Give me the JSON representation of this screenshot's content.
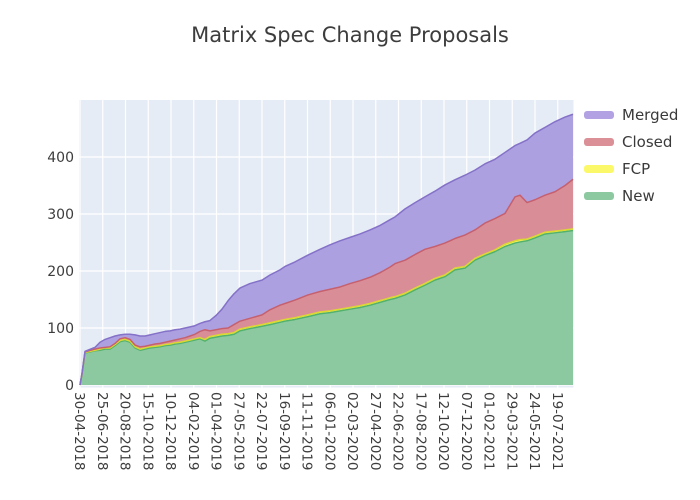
{
  "chart_data": {
    "type": "area",
    "stacked": true,
    "title": "Matrix Spec Change Proposals",
    "x_unit": "tick index (one tick = 56 days)",
    "x_axis": {
      "tick_labels": [
        "30-04-2018",
        "25-06-2018",
        "20-08-2018",
        "15-10-2018",
        "10-12-2018",
        "04-02-2019",
        "01-04-2019",
        "27-05-2019",
        "22-07-2019",
        "16-09-2019",
        "11-11-2019",
        "06-01-2020",
        "02-03-2020",
        "27-04-2020",
        "22-06-2020",
        "17-08-2020",
        "12-10-2020",
        "07-12-2020",
        "01-02-2021",
        "29-03-2021",
        "24-05-2021",
        "19-07-2021"
      ],
      "label_rotation_deg": 90
    },
    "y_axis": {
      "ticks": [
        0,
        100,
        200,
        300,
        400
      ],
      "range": [
        0,
        500
      ]
    },
    "grid": true,
    "x": [
      0,
      0.09,
      0.22,
      0.66,
      0.88,
      1.1,
      1.32,
      1.54,
      1.76,
      1.98,
      2.2,
      2.42,
      2.64,
      2.86,
      3.08,
      3.3,
      3.52,
      3.74,
      3.96,
      4.18,
      4.4,
      4.62,
      4.84,
      5.05,
      5.27,
      5.49,
      5.71,
      5.98,
      6.24,
      6.51,
      6.77,
      7.03,
      7.47,
      8.0,
      8.35,
      8.79,
      9.01,
      9.45,
      10.02,
      10.55,
      10.99,
      11.43,
      11.87,
      12.31,
      12.75,
      13.19,
      13.63,
      13.85,
      14.29,
      14.73,
      15.16,
      15.6,
      16.04,
      16.48,
      16.92,
      17.36,
      17.8,
      18.24,
      18.68,
      19.12,
      19.34,
      19.65,
      20.0,
      20.44,
      20.88,
      21.32,
      21.67
    ],
    "stack_order_bottom_to_top": [
      "New",
      "FCP",
      "Closed",
      "Merged"
    ],
    "series": [
      {
        "name": "New",
        "values": [
          0,
          20,
          56,
          60,
          61,
          63,
          63,
          69,
          76,
          78,
          75,
          65,
          61,
          63,
          65,
          66,
          67,
          69,
          70,
          72,
          73,
          75,
          77,
          79,
          81,
          77,
          82,
          84,
          86,
          87,
          89,
          95,
          99,
          103,
          106,
          110,
          112,
          115,
          120,
          125,
          127,
          130,
          133,
          136,
          140,
          145,
          150,
          152,
          158,
          167,
          175,
          184,
          190,
          202,
          205,
          219,
          227,
          234,
          243,
          249,
          251,
          253,
          258,
          265,
          267,
          269,
          271
        ]
      },
      {
        "name": "FCP",
        "values": [
          0,
          0,
          1,
          1,
          2,
          2,
          2,
          2,
          2,
          2,
          2,
          2,
          2,
          2,
          2,
          2,
          2,
          2,
          2,
          2,
          2,
          2,
          2,
          2,
          2,
          3,
          3,
          3,
          3,
          3,
          3,
          3,
          3,
          3,
          3,
          3,
          3,
          3,
          3,
          3,
          3,
          3,
          3,
          3,
          3,
          3,
          3,
          3,
          3,
          3,
          3,
          3,
          3,
          3,
          3,
          3,
          3,
          3,
          4,
          4,
          4,
          3,
          3,
          3,
          3,
          3,
          3
        ]
      },
      {
        "name": "Closed",
        "values": [
          0,
          0,
          1,
          2,
          2,
          1,
          2,
          2,
          3,
          3,
          3,
          3,
          4,
          3,
          3,
          4,
          4,
          4,
          5,
          5,
          6,
          6,
          7,
          8,
          11,
          17,
          10,
          10,
          10,
          10,
          14,
          14,
          15,
          17,
          23,
          27,
          28,
          31,
          35,
          36,
          38,
          39,
          42,
          44,
          46,
          49,
          54,
          58,
          58,
          59,
          60,
          56,
          56,
          52,
          55,
          50,
          54,
          55,
          54,
          77,
          78,
          64,
          64,
          65,
          69,
          78,
          87
        ]
      },
      {
        "name": "Merged",
        "values": [
          0,
          1,
          1,
          3,
          10,
          14,
          16,
          13,
          7,
          6,
          9,
          18,
          19,
          18,
          18,
          18,
          19,
          19,
          18,
          18,
          17,
          17,
          16,
          15,
          14,
          14,
          18,
          25,
          34,
          48,
          54,
          58,
          61,
          61,
          61,
          62,
          65,
          67,
          70,
          74,
          78,
          81,
          81,
          82,
          83,
          83,
          83,
          82,
          90,
          91,
          92,
          97,
          102,
          103,
          105,
          105,
          104,
          104,
          107,
          90,
          91,
          110,
          117,
          119,
          123,
          120,
          114
        ]
      }
    ],
    "final_totals": {
      "New": 271,
      "FCP": 3,
      "Closed": 87,
      "Merged": 114,
      "total": 475
    },
    "legend": {
      "position": "outside-top-right",
      "entries": [
        {
          "label": "Merged",
          "color": "#b2a1e3"
        },
        {
          "label": "Closed",
          "color": "#db9097"
        },
        {
          "label": "FCP",
          "color": "#fbf969"
        },
        {
          "label": "New",
          "color": "#8dc9a0"
        }
      ]
    },
    "colors": {
      "New": {
        "fill": "#8cc9a0",
        "line": "#52b26d"
      },
      "FCP": {
        "fill": "#f8f565",
        "line": "#dbd832"
      },
      "Closed": {
        "fill": "#d98e97",
        "line": "#c6606e"
      },
      "Merged": {
        "fill": "#ada0e0",
        "line": "#8471c8"
      }
    },
    "plot_bg": "#e6ecf5",
    "grid_color": "#ffffff",
    "tick_label_color": "#3d3d3d",
    "title_color": "#3d3d3d"
  }
}
